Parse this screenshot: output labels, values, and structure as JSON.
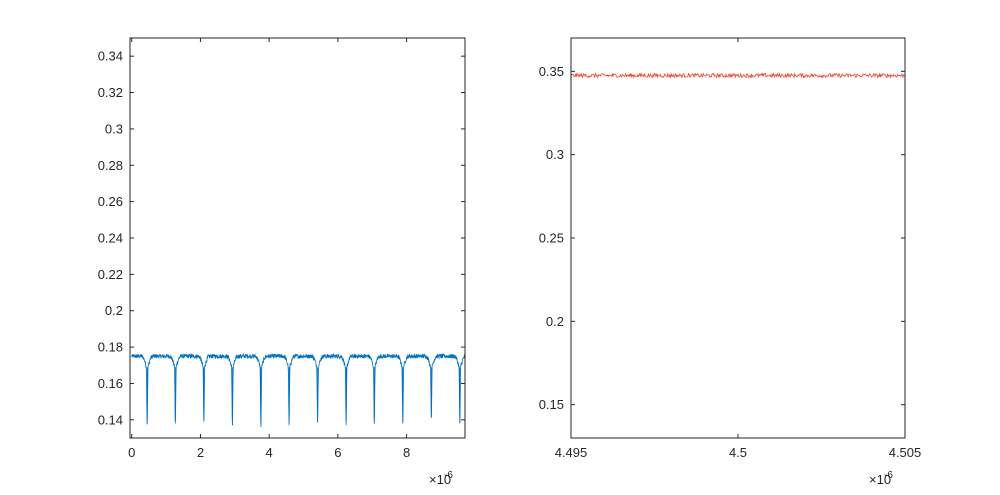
{
  "chart_data": [
    {
      "type": "line",
      "title": "",
      "xlabel": "",
      "ylabel": "",
      "x_exponent_label": "×10",
      "x_exponent_power": "-6",
      "xlim": [
        -0.05,
        9.7
      ],
      "ylim": [
        0.13,
        0.35
      ],
      "x_ticks": [
        0,
        2,
        4,
        6,
        8
      ],
      "x_tick_labels": [
        "0",
        "2",
        "4",
        "6",
        "8"
      ],
      "y_ticks": [
        0.14,
        0.16,
        0.18,
        0.2,
        0.22,
        0.24,
        0.26,
        0.28,
        0.3,
        0.32,
        0.34
      ],
      "y_tick_labels": [
        "0.14",
        "0.16",
        "0.18",
        "0.2",
        "0.22",
        "0.24",
        "0.26",
        "0.28",
        "0.3",
        "0.32",
        "0.34"
      ],
      "grid": false,
      "series": [
        {
          "color": "#0072BD",
          "baseline": 0.175,
          "noise": 0.0012,
          "dips": [
            {
              "x": 0.45,
              "min": 0.138
            },
            {
              "x": 1.27,
              "min": 0.138
            },
            {
              "x": 2.1,
              "min": 0.139
            },
            {
              "x": 2.93,
              "min": 0.137
            },
            {
              "x": 3.76,
              "min": 0.136
            },
            {
              "x": 4.58,
              "min": 0.137
            },
            {
              "x": 5.41,
              "min": 0.139
            },
            {
              "x": 6.24,
              "min": 0.137
            },
            {
              "x": 7.06,
              "min": 0.139
            },
            {
              "x": 7.89,
              "min": 0.138
            },
            {
              "x": 8.72,
              "min": 0.141
            },
            {
              "x": 9.55,
              "min": 0.138
            }
          ],
          "x_range": [
            0,
            9.7
          ]
        }
      ]
    },
    {
      "type": "line",
      "title": "",
      "xlabel": "",
      "ylabel": "",
      "x_exponent_label": "×10",
      "x_exponent_power": "-6",
      "xlim": [
        4.495,
        4.505
      ],
      "ylim": [
        0.13,
        0.37
      ],
      "x_ticks": [
        4.495,
        4.5,
        4.505
      ],
      "x_tick_labels": [
        "4.495",
        "4.5",
        "4.505"
      ],
      "y_ticks": [
        0.15,
        0.2,
        0.25,
        0.3,
        0.35
      ],
      "y_tick_labels": [
        "0.15",
        "0.2",
        "0.25",
        "0.3",
        "0.35"
      ],
      "grid": false,
      "series": [
        {
          "color": "#E8452E",
          "baseline": 0.3475,
          "noise": 0.0012,
          "dips": [],
          "x_range": [
            4.495,
            4.505
          ]
        }
      ]
    }
  ]
}
